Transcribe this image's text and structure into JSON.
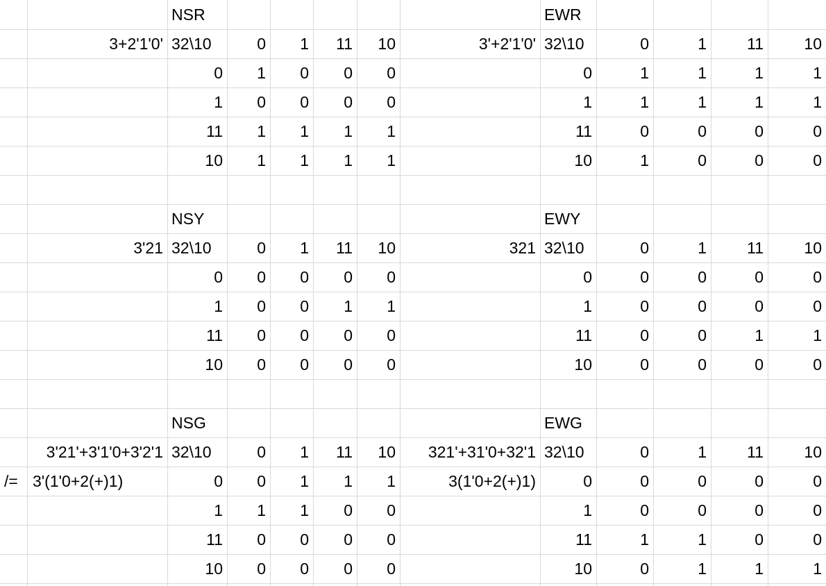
{
  "tables": [
    {
      "title": "NSR",
      "expression": [
        "3+2'1'0'"
      ],
      "corner": "32\\10",
      "col_headers": [
        "0",
        "1",
        "11",
        "10"
      ],
      "rows": [
        {
          "label": "0",
          "cells": [
            "1",
            "0",
            "0",
            "0"
          ]
        },
        {
          "label": "1",
          "cells": [
            "0",
            "0",
            "0",
            "0"
          ]
        },
        {
          "label": "11",
          "cells": [
            "1",
            "1",
            "1",
            "1"
          ]
        },
        {
          "label": "10",
          "cells": [
            "1",
            "1",
            "1",
            "1"
          ]
        }
      ]
    },
    {
      "title": "EWR",
      "expression": [
        "3'+2'1'0'"
      ],
      "corner": "32\\10",
      "col_headers": [
        "0",
        "1",
        "11",
        "10"
      ],
      "rows": [
        {
          "label": "0",
          "cells": [
            "1",
            "1",
            "1",
            "1"
          ]
        },
        {
          "label": "1",
          "cells": [
            "1",
            "1",
            "1",
            "1"
          ]
        },
        {
          "label": "11",
          "cells": [
            "0",
            "0",
            "0",
            "0"
          ]
        },
        {
          "label": "10",
          "cells": [
            "1",
            "0",
            "0",
            "0"
          ]
        }
      ]
    },
    {
      "title": "NSY",
      "expression": [
        "3'21"
      ],
      "corner": "32\\10",
      "col_headers": [
        "0",
        "1",
        "11",
        "10"
      ],
      "rows": [
        {
          "label": "0",
          "cells": [
            "0",
            "0",
            "0",
            "0"
          ]
        },
        {
          "label": "1",
          "cells": [
            "0",
            "0",
            "1",
            "1"
          ]
        },
        {
          "label": "11",
          "cells": [
            "0",
            "0",
            "0",
            "0"
          ]
        },
        {
          "label": "10",
          "cells": [
            "0",
            "0",
            "0",
            "0"
          ]
        }
      ]
    },
    {
      "title": "EWY",
      "expression": [
        "321"
      ],
      "corner": "32\\10",
      "col_headers": [
        "0",
        "1",
        "11",
        "10"
      ],
      "rows": [
        {
          "label": "0",
          "cells": [
            "0",
            "0",
            "0",
            "0"
          ]
        },
        {
          "label": "1",
          "cells": [
            "0",
            "0",
            "0",
            "0"
          ]
        },
        {
          "label": "11",
          "cells": [
            "0",
            "0",
            "1",
            "1"
          ]
        },
        {
          "label": "10",
          "cells": [
            "0",
            "0",
            "0",
            "0"
          ]
        }
      ]
    },
    {
      "title": "NSG",
      "expression": [
        "3'21'+3'1'0+3'2'1",
        "3'(1'0+2(+)1)"
      ],
      "note": "/=",
      "corner": "32\\10",
      "col_headers": [
        "0",
        "1",
        "11",
        "10"
      ],
      "rows": [
        {
          "label": "0",
          "cells": [
            "0",
            "1",
            "1",
            "1"
          ]
        },
        {
          "label": "1",
          "cells": [
            "1",
            "1",
            "0",
            "0"
          ]
        },
        {
          "label": "11",
          "cells": [
            "0",
            "0",
            "0",
            "0"
          ]
        },
        {
          "label": "10",
          "cells": [
            "0",
            "0",
            "0",
            "0"
          ]
        }
      ]
    },
    {
      "title": "EWG",
      "expression": [
        "321'+31'0+32'1",
        "3(1'0+2(+)1)"
      ],
      "corner": "32\\10",
      "col_headers": [
        "0",
        "1",
        "11",
        "10"
      ],
      "rows": [
        {
          "label": "0",
          "cells": [
            "0",
            "0",
            "0",
            "0"
          ]
        },
        {
          "label": "1",
          "cells": [
            "0",
            "0",
            "0",
            "0"
          ]
        },
        {
          "label": "11",
          "cells": [
            "1",
            "1",
            "0",
            "0"
          ]
        },
        {
          "label": "10",
          "cells": [
            "0",
            "1",
            "1",
            "1"
          ]
        }
      ]
    }
  ]
}
